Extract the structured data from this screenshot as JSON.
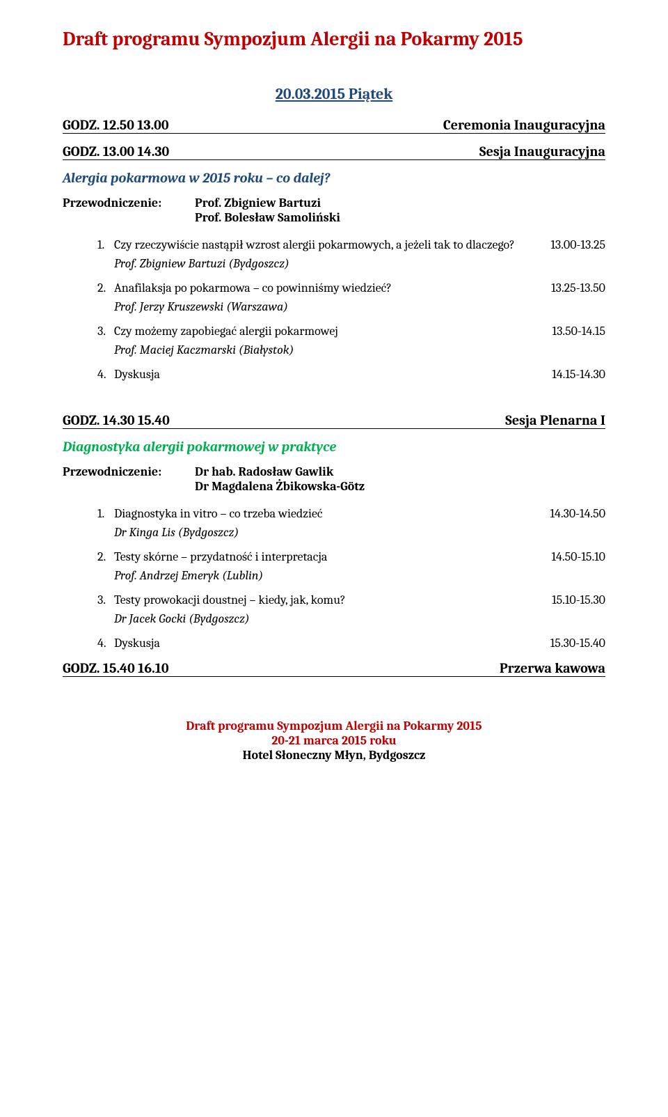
{
  "colors": {
    "red": "#c00000",
    "blue": "#1f497d",
    "green": "#00b050",
    "black": "#000000"
  },
  "title": "Draft programu Sympozjum Alergii na Pokarmy 2015",
  "date_header": "20.03.2015 Piątek",
  "block1": {
    "time_left": "GODZ. 12.50  13.00",
    "time_right": "Ceremonia Inauguracyjna"
  },
  "session1": {
    "time_left": "GODZ. 13.00  14.30",
    "time_right": "Sesja Inauguracyjna",
    "topic": "Alergia pokarmowa w 2015 roku – co dalej?",
    "chair_label": "Przewodniczenie:",
    "chair1": "Prof. Zbigniew Bartuzi",
    "chair2": "Prof. Bolesław Samoliński",
    "talks": [
      {
        "num": "1.",
        "title": "Czy rzeczywiście nastąpił wzrost alergii pokarmowych, a jeżeli tak to dlaczego?",
        "time": "13.00-13.25",
        "speaker": "Prof. Zbigniew Bartuzi (Bydgoszcz)"
      },
      {
        "num": "2.",
        "title": "Anafilaksja po pokarmowa – co powinniśmy wiedzieć?",
        "time": "13.25-13.50",
        "speaker": "Prof. Jerzy Kruszewski (Warszawa)"
      },
      {
        "num": "3.",
        "title": "Czy możemy zapobiegać alergii pokarmowej",
        "time": "13.50-14.15",
        "speaker": "Prof. Maciej Kaczmarski (Białystok)"
      },
      {
        "num": "4.",
        "title": "Dyskusja",
        "time": "14.15-14.30",
        "speaker": null
      }
    ]
  },
  "session2": {
    "time_left": "GODZ. 14.30  15.40",
    "time_right": "Sesja Plenarna I",
    "topic": "Diagnostyka alergii pokarmowej w praktyce",
    "chair_label": "Przewodniczenie:",
    "chair1": "Dr hab. Radosław Gawlik",
    "chair2": "Dr Magdalena Żbikowska-Götz",
    "talks": [
      {
        "num": "1.",
        "title": "Diagnostyka in vitro – co trzeba wiedzieć",
        "time": "14.30-14.50",
        "speaker": "Dr Kinga Lis (Bydgoszcz)"
      },
      {
        "num": "2.",
        "title": "Testy skórne – przydatność i interpretacja",
        "time": "14.50-15.10",
        "speaker": "Prof. Andrzej Emeryk (Lublin)"
      },
      {
        "num": "3.",
        "title": "Testy prowokacji doustnej – kiedy, jak, komu?",
        "time": "15.10-15.30",
        "speaker": "Dr Jacek Gocki (Bydgoszcz)"
      },
      {
        "num": "4.",
        "title": "Dyskusja",
        "time": "15.30-15.40",
        "speaker": null
      }
    ]
  },
  "block3": {
    "time_left": "GODZ. 15.40  16.10",
    "time_right": "Przerwa kawowa"
  },
  "footer": {
    "line1": "Draft programu Sympozjum Alergii na Pokarmy 2015",
    "line2": "20-21 marca 2015 roku",
    "line3": "Hotel Słoneczny Młyn, Bydgoszcz"
  }
}
